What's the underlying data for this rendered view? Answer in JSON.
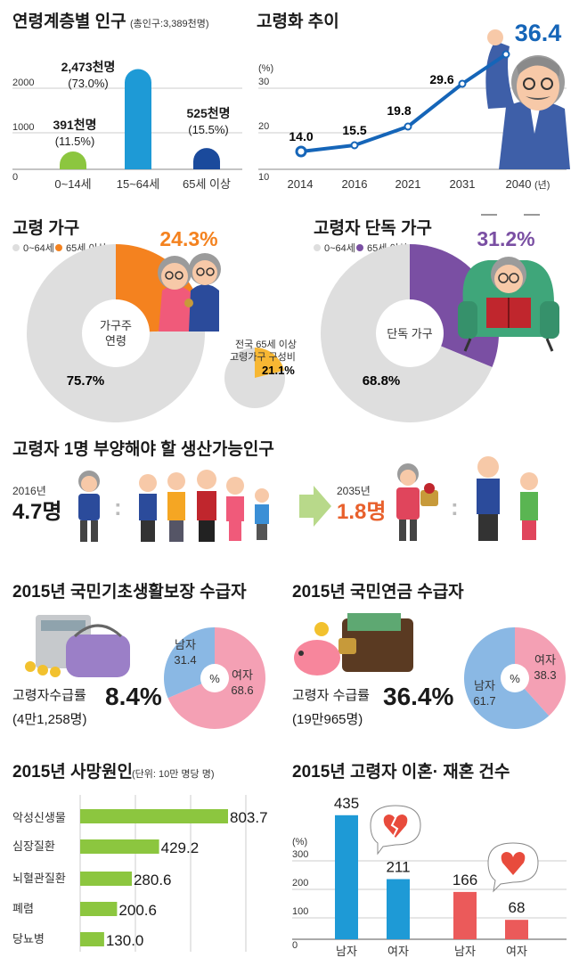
{
  "chart_data": [
    {
      "type": "bar",
      "title": "연령계층별 인구",
      "subtitle": "(총인구:3,389천명)",
      "ylim": [
        0,
        2500
      ],
      "yticks": [
        "0",
        "1000",
        "2000"
      ],
      "categories": [
        "0~14세",
        "15~64세",
        "65세 이상"
      ],
      "values": [
        391,
        2473,
        525
      ],
      "value_labels": [
        "391천명",
        "2,473천명",
        "525천명"
      ],
      "pct_labels": [
        "(11.5%)",
        "(73.0%)",
        "(15.5%)"
      ],
      "colors": [
        "#8cc63f",
        "#1e9ad6",
        "#1a4a9c"
      ]
    },
    {
      "type": "line",
      "title": "고령화 추이",
      "ylabel": "(%)",
      "ylim": [
        10,
        37
      ],
      "yticks": [
        "10",
        "20",
        "30"
      ],
      "x": [
        "2014",
        "2016",
        "2021",
        "2031",
        "2040"
      ],
      "x_unit": "(년)",
      "values": [
        14.0,
        15.5,
        19.8,
        29.6,
        36.4
      ],
      "value_labels": [
        "14.0",
        "15.5",
        "19.8",
        "29.6",
        "36.4"
      ],
      "color": "#1565b8"
    },
    {
      "type": "pie",
      "title": "고령 가구",
      "legend": [
        "0~64세",
        "65세 이상"
      ],
      "center_label": [
        "가구주",
        "연령"
      ],
      "values": [
        75.7,
        24.3
      ],
      "value_labels": [
        "75.7%",
        "24.3%"
      ],
      "colors": [
        "#dedede",
        "#f4821f"
      ],
      "sub_pie": {
        "title": [
          "전국 65세 이상",
          "고령가구 구성비"
        ],
        "value": 21.1,
        "value_label": "21.1%",
        "colors": [
          "#dedede",
          "#f7b733"
        ]
      }
    },
    {
      "type": "pie",
      "title": "고령자 단독 가구",
      "legend": [
        "0~64세",
        "65세 이상"
      ],
      "center_label": [
        "단독 가구"
      ],
      "values": [
        68.8,
        31.2
      ],
      "value_labels": [
        "68.8%",
        "31.2%"
      ],
      "colors": [
        "#dedede",
        "#7a4fa3"
      ]
    },
    {
      "type": "table",
      "title": "고령자 1명 부양해야 할 생산가능인구",
      "items": [
        {
          "year": "2016년",
          "value": "4.7명"
        },
        {
          "year": "2035년",
          "value": "1.8명"
        }
      ]
    },
    {
      "type": "pie",
      "title": "2015년 국민기초생활보장 수급자",
      "rate_label": "고령자수급률",
      "rate_value": "8.4%",
      "count": "(4만1,258명)",
      "center": "%",
      "slices": [
        {
          "name": "남자",
          "value": 31.4,
          "label": "31.4",
          "color": "#8ab8e4"
        },
        {
          "name": "여자",
          "value": 68.6,
          "label": "68.6",
          "color": "#f4a0b4"
        }
      ]
    },
    {
      "type": "pie",
      "title": "2015년 국민연금 수급자",
      "rate_label": "고령자 수급률",
      "rate_value": "36.4%",
      "count": "(19만965명)",
      "center": "%",
      "slices": [
        {
          "name": "여자",
          "value": 38.3,
          "label": "38.3",
          "color": "#f4a0b4"
        },
        {
          "name": "남자",
          "value": 61.7,
          "label": "61.7",
          "color": "#8ab8e4"
        }
      ]
    },
    {
      "type": "bar",
      "orientation": "horizontal",
      "title": "2015년 사망원인",
      "subtitle": "(단위: 10만 명당 명)",
      "xlim": [
        0,
        900
      ],
      "categories": [
        "악성신생물",
        "심장질환",
        "뇌혈관질환",
        "폐렴",
        "당뇨병"
      ],
      "values": [
        803.7,
        429.2,
        280.6,
        200.6,
        130.0
      ],
      "value_labels": [
        "803.7",
        "429.2",
        "280.6",
        "200.6",
        "130.0"
      ],
      "color": "#8cc63f"
    },
    {
      "type": "bar",
      "title": "2015년 고령자 이혼· 재혼 건수",
      "ylabel": "(%)",
      "ylim": [
        0,
        400
      ],
      "yticks": [
        "0",
        "100",
        "200",
        "300"
      ],
      "categories": [
        "남자",
        "여자",
        "남자",
        "여자"
      ],
      "values": [
        435,
        211,
        166,
        68
      ],
      "value_labels": [
        "435",
        "211",
        "166",
        "68"
      ],
      "colors": [
        "#1e9ad6",
        "#1e9ad6",
        "#eb5a5a",
        "#eb5a5a"
      ]
    }
  ]
}
